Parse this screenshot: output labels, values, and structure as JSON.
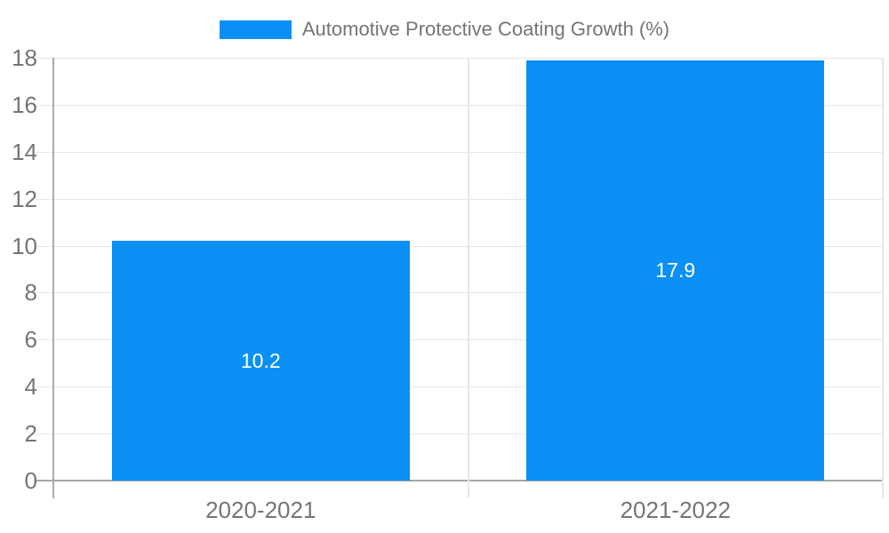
{
  "chart_data": {
    "type": "bar",
    "title": "",
    "xlabel": "",
    "ylabel": "",
    "categories": [
      "2020-2021",
      "2021-2022"
    ],
    "series": [
      {
        "name": "Automotive Protective Coating Growth (%)",
        "values": [
          10.2,
          17.9
        ]
      }
    ],
    "value_labels": [
      "10.2",
      "17.9"
    ],
    "ylim": [
      0,
      18
    ],
    "yticks": [
      0,
      2,
      4,
      6,
      8,
      10,
      12,
      14,
      16,
      18
    ],
    "grid": true,
    "legend_position": "top-center",
    "colors": {
      "bar": "#0a90f5",
      "axis_text": "#757575",
      "legend_text": "#757575",
      "grid_line": "#e6e6e6",
      "axis_line": "#ababab",
      "baseline": "#a6a6a6",
      "value_label_text": "#ffffff",
      "background": "#ffffff"
    }
  }
}
